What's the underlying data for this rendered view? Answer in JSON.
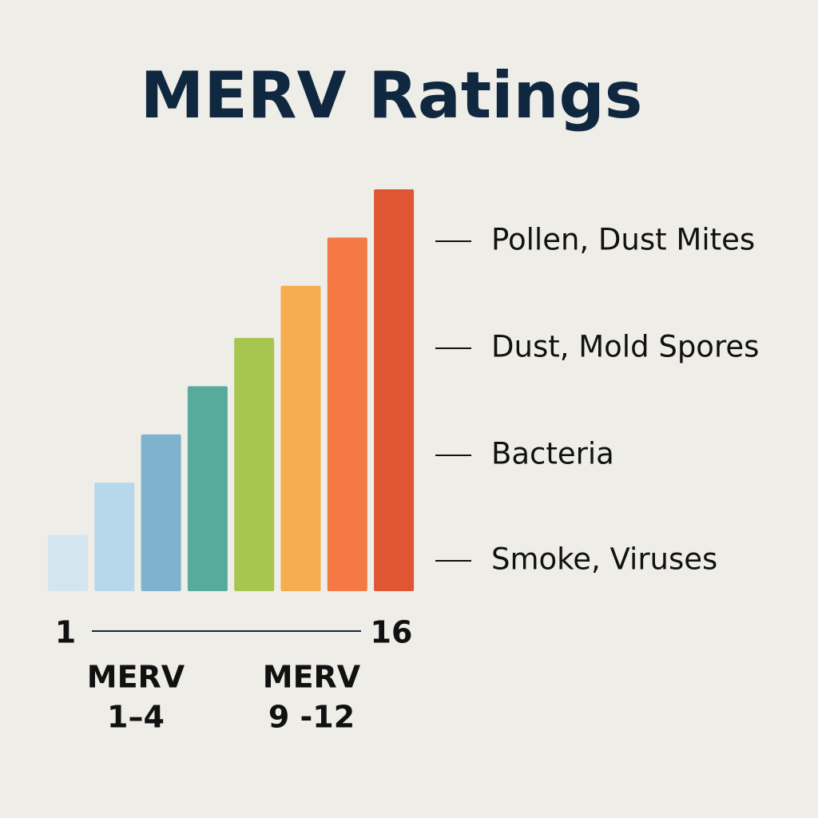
{
  "chart_data": {
    "type": "bar",
    "title": "MERV Ratings",
    "categories": [
      null,
      null,
      null,
      null,
      null,
      null,
      null,
      null
    ],
    "values": [
      14,
      27,
      39,
      51,
      63,
      76,
      88,
      100
    ],
    "colors": [
      "#d3e6f0",
      "#b7d8ea",
      "#7fb2cd",
      "#58aa9d",
      "#a6c64f",
      "#f5ad4f",
      "#f47945",
      "#de5634"
    ],
    "ylim": [
      0,
      100
    ],
    "annotations": [
      "Pollen, Dust Mites",
      "Dust, Mold Spores",
      "Bacteria",
      "Smoke, Viruses"
    ],
    "range_labels": [
      "1",
      "16"
    ],
    "group_labels": [
      [
        "MERV",
        "1–4"
      ],
      [
        "MERV",
        "9 -12"
      ]
    ]
  }
}
